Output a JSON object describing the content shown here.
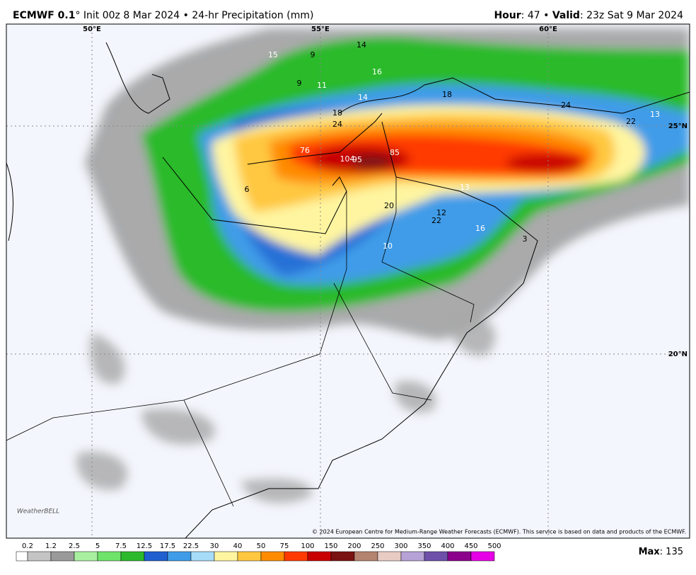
{
  "header": {
    "title_bold": "ECMWF 0.1",
    "title_rest": "° Init 00z 8 Mar 2024 • 24-hr Precipitation (mm)",
    "hour_key": "Hour",
    "hour_value": ": 47 • ",
    "valid_key": "Valid",
    "valid_value": ": 23z Sat 9 Mar 2024"
  },
  "map": {
    "lon_labels": [
      "50°E",
      "55°E",
      "60°E"
    ],
    "lat_labels": [
      "25°N",
      "20°N"
    ],
    "point_labels": [
      15,
      9,
      14,
      16,
      9,
      11,
      18,
      14,
      18,
      24,
      76,
      104,
      95,
      85,
      24,
      22,
      13,
      6,
      20,
      13,
      12,
      22,
      16,
      10,
      3
    ],
    "copyright": "© 2024 European Centre for Medium-Range Weather Forecasts (ECMWF). This service is based on data and products of the ECMWF.",
    "logo": "WeatherBELL"
  },
  "legend": {
    "levels": [
      0.2,
      1.2,
      2.5,
      5,
      7.5,
      12.5,
      17.5,
      22.5,
      30,
      40,
      50,
      75,
      100,
      150,
      200,
      250,
      300,
      350,
      400,
      450,
      500
    ],
    "colors": [
      "#ffffff",
      "#c4c4c4",
      "#9a9a9a",
      "#a8f0a0",
      "#6ee46a",
      "#2cba2c",
      "#1f5fd0",
      "#3f9ce8",
      "#a6dcf7",
      "#fff5a0",
      "#ffc840",
      "#ff8c00",
      "#ff3a00",
      "#c80000",
      "#7a1212",
      "#b48470",
      "#e8ccc4",
      "#b6a2d6",
      "#6e50aa",
      "#8c008c",
      "#e600e6"
    ]
  },
  "max_key": "Max",
  "max_value": ": 135"
}
